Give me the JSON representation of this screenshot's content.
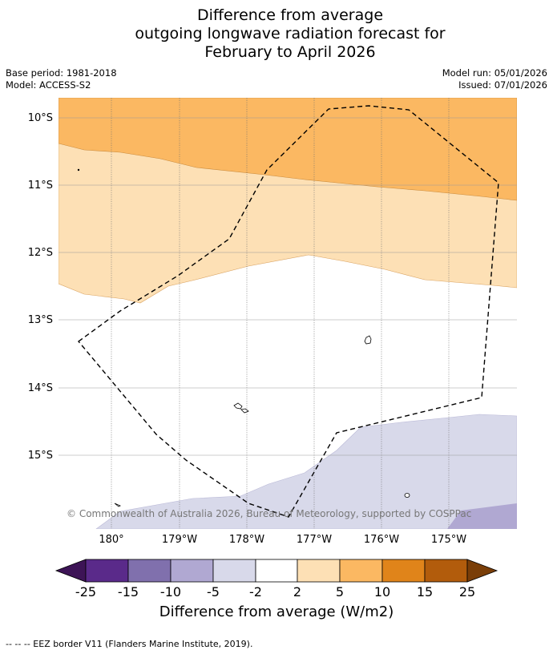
{
  "title": {
    "line1": "Difference from average",
    "line2": "outgoing longwave radiation forecast for",
    "line3": "February to April 2026"
  },
  "meta": {
    "base_period": "Base period: 1981-2018",
    "model": "Model: ACCESS-S2",
    "model_run": "Model run: 05/01/2026",
    "issued": "Issued: 07/01/2026"
  },
  "map": {
    "lat_labels": [
      "10°S",
      "11°S",
      "12°S",
      "13°S",
      "14°S",
      "15°S"
    ],
    "lon_labels": [
      "180°",
      "179°W",
      "178°W",
      "177°W",
      "176°W",
      "175°W"
    ],
    "attribution": "© Commonwealth of Australia 2026, Bureau of Meteorology, supported by COSPPac"
  },
  "colorbar": {
    "title": "Difference from average (W/m2)",
    "ticks": [
      "-25",
      "-15",
      "-10",
      "-5",
      "-2",
      "2",
      "5",
      "10",
      "15",
      "25"
    ],
    "colors": [
      "#3d1456",
      "#5a2a8a",
      "#8070ad",
      "#b0a8d2",
      "#d8d9ea",
      "#ffffff",
      "#fde0b5",
      "#fbb862",
      "#e0841a",
      "#b25c0c",
      "#7a3e08"
    ]
  },
  "footer": {
    "legend": "--  --  -- EEZ border V11 (Flanders Marine Institute, 2019)."
  }
}
